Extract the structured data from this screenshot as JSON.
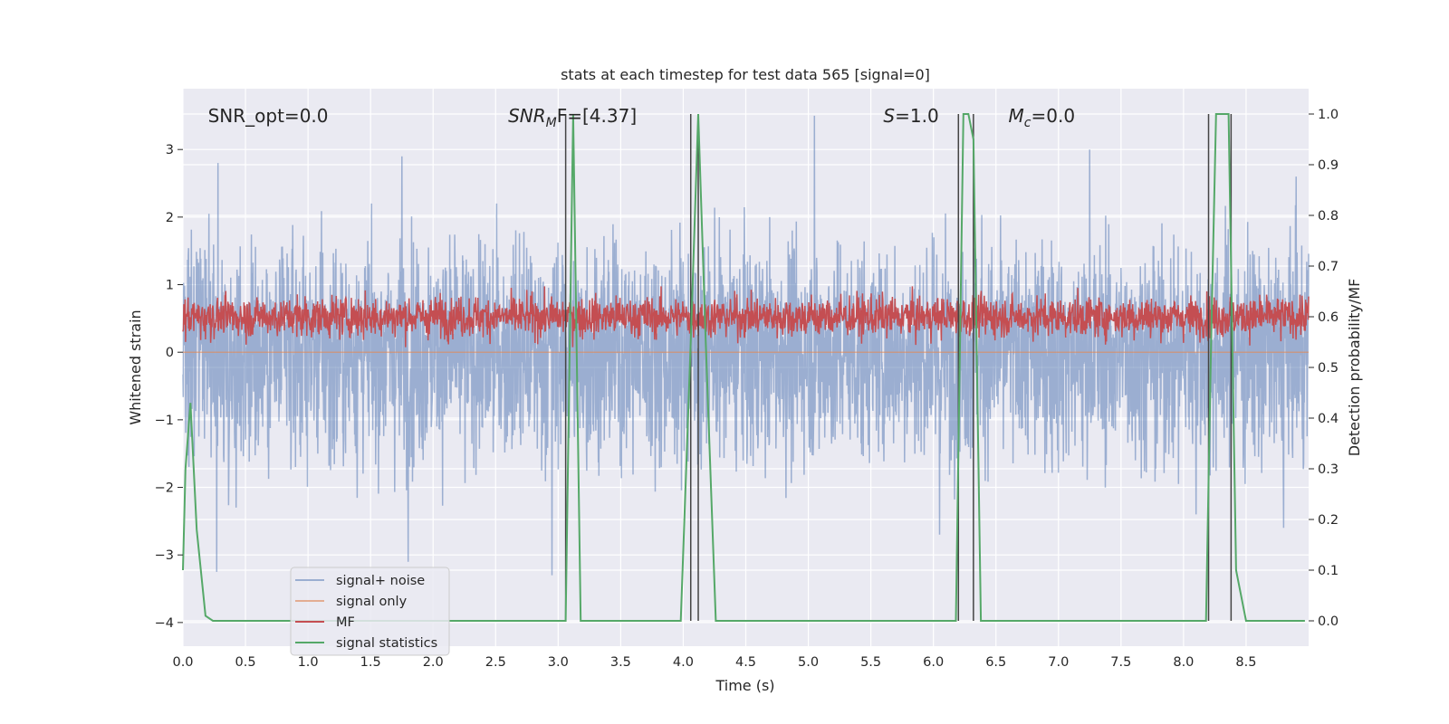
{
  "chart_data": {
    "type": "line",
    "title": "stats at each timestep for test data 565 [signal=0]",
    "xlabel": "Time (s)",
    "ylabel": "Whitened strain",
    "y2label": "Detection probability/MF",
    "xlim": [
      0.0,
      9.0
    ],
    "ylim": [
      -4.35,
      3.9
    ],
    "y2lim": [
      -0.05,
      1.05
    ],
    "xticks": [
      "0.0",
      "0.5",
      "1.0",
      "1.5",
      "2.0",
      "2.5",
      "3.0",
      "3.5",
      "4.0",
      "4.5",
      "5.0",
      "5.5",
      "6.0",
      "6.5",
      "7.0",
      "7.5",
      "8.0",
      "8.5"
    ],
    "yticks": [
      "3",
      "2",
      "1",
      "0",
      "−1",
      "−2",
      "−3",
      "−4"
    ],
    "y2ticks": [
      "1.0",
      "0.9",
      "0.8",
      "0.7",
      "0.6",
      "0.5",
      "0.4",
      "0.3",
      "0.2",
      "0.1",
      "0.0"
    ],
    "grid": true,
    "legend_position": "lower left",
    "annotations": [
      {
        "text": "SNR_opt=0.0",
        "x": 0.2,
        "y": 3.5
      },
      {
        "text": "SNR_MF=[4.37]",
        "main": "SNR",
        "sub": "M",
        "tail": "F=[4.37]",
        "x": 2.6,
        "y": 3.5
      },
      {
        "text": "S=1.0",
        "main": "S",
        "tail": "=1.0",
        "x": 5.6,
        "y": 3.5
      },
      {
        "text": "M_c=0.0",
        "main": "M",
        "sub": "c",
        "tail": "=0.0",
        "x": 6.6,
        "y": 3.5
      }
    ],
    "series": [
      {
        "name": "signal+ noise",
        "color": "#4c72b0",
        "alpha": 0.5,
        "axis": "left",
        "description": "whitened strain noise over 0 to 9 s",
        "x_range": [
          0.0,
          9.0
        ],
        "envelope": [
          -2.0,
          2.0
        ],
        "extremes": [
          {
            "x": 0.28,
            "y": 2.8
          },
          {
            "x": 0.27,
            "y": -3.25
          },
          {
            "x": 1.75,
            "y": 2.9
          },
          {
            "x": 1.8,
            "y": -3.1
          },
          {
            "x": 2.95,
            "y": -3.3
          },
          {
            "x": 5.05,
            "y": 3.5
          },
          {
            "x": 6.05,
            "y": -2.7
          },
          {
            "x": 7.25,
            "y": 3.0
          },
          {
            "x": 8.9,
            "y": 2.6
          },
          {
            "x": 8.1,
            "y": -2.4
          },
          {
            "x": 8.8,
            "y": -2.6
          }
        ]
      },
      {
        "name": "signal only",
        "color": "#dd8452",
        "alpha": 0.6,
        "axis": "left",
        "x": [
          0.0,
          9.0
        ],
        "y": [
          0.0,
          0.0
        ]
      },
      {
        "name": "MF",
        "color": "#c44e52",
        "axis": "right",
        "description": "matched filter output over 0 to 9 s",
        "x_range": [
          0.0,
          9.0
        ],
        "range": [
          0.54,
          0.66
        ]
      },
      {
        "name": "signal statistics",
        "color": "#55a868",
        "axis": "right",
        "x": [
          0.0,
          0.02,
          0.06,
          0.11,
          0.18,
          0.24,
          0.3,
          3.06,
          3.12,
          3.18,
          3.24,
          3.98,
          4.06,
          4.12,
          4.18,
          4.26,
          6.18,
          6.24,
          6.28,
          6.32,
          6.38,
          8.18,
          8.22,
          8.26,
          8.36,
          8.42,
          8.5,
          8.97
        ],
        "y": [
          0.1,
          0.3,
          0.43,
          0.18,
          0.01,
          0.0,
          0.0,
          0.0,
          1.0,
          0.0,
          0.0,
          0.0,
          0.55,
          1.0,
          0.55,
          0.0,
          0.0,
          1.0,
          1.0,
          0.95,
          0.0,
          0.0,
          0.55,
          1.0,
          1.0,
          0.1,
          0.0,
          0.0
        ]
      }
    ],
    "vertical_lines": {
      "color": "#444444",
      "axis": "right",
      "y_range": [
        0.0,
        1.0
      ],
      "x": [
        3.06,
        4.06,
        4.12,
        6.2,
        6.32,
        8.2,
        8.38
      ]
    }
  }
}
